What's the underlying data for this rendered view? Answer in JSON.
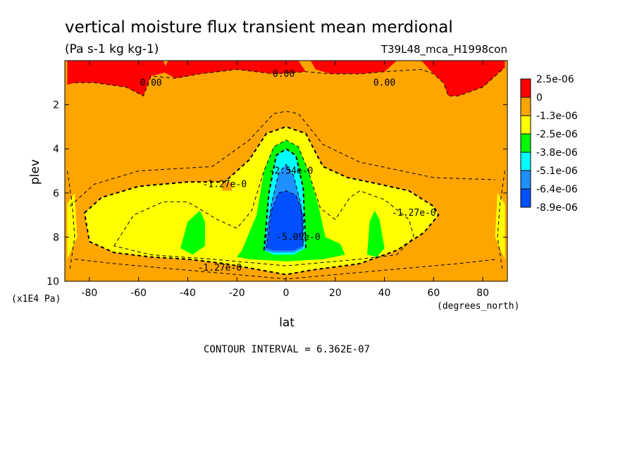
{
  "chart_data": {
    "type": "heatmap",
    "title": "vertical moisture flux transient mean merdional",
    "subtitle": "(Pa s-1 kg kg-1)",
    "run_label": "T39L48_mca_H1998con",
    "xlabel": "lat",
    "x_unit": "(degrees_north)",
    "ylabel": "plev",
    "y_unit": "(x1E4 Pa)",
    "xlim": [
      -90,
      90
    ],
    "ylim": [
      10,
      0
    ],
    "x_ticks": [
      "-80",
      "-60",
      "-40",
      "-20",
      "0",
      "20",
      "40",
      "60",
      "80"
    ],
    "x_tick_values": [
      -80,
      -60,
      -40,
      -20,
      0,
      20,
      40,
      60,
      80
    ],
    "y_ticks": [
      "2",
      "4",
      "6",
      "8",
      "10"
    ],
    "y_tick_values": [
      2,
      4,
      6,
      8,
      10
    ],
    "legend_placement": "right",
    "colorbar": [
      {
        "label": "2.5e-06",
        "color": "#ff0000"
      },
      {
        "label": "0",
        "color": "#ffa500"
      },
      {
        "label": "-1.3e-06",
        "color": "#ffff00"
      },
      {
        "label": "-2.5e-06",
        "color": "#00ff00"
      },
      {
        "label": "-3.8e-06",
        "color": "#00ffff"
      },
      {
        "label": "-5.1e-06",
        "color": "#1e90ff"
      },
      {
        "label": "-6.4e-06",
        "color": "#0050ff"
      },
      {
        "label": "-8.9e-06",
        "color": ""
      }
    ],
    "contour_labels": [
      {
        "text": "0.00",
        "lat": -55,
        "plev": 1.0
      },
      {
        "text": "0.00",
        "lat": -1,
        "plev": 0.6
      },
      {
        "text": "0.00",
        "lat": 40,
        "plev": 1.0
      },
      {
        "text": "-1.27e-0",
        "lat": -25,
        "plev": 5.6
      },
      {
        "text": "-2.54e-0",
        "lat": 2,
        "plev": 5.0
      },
      {
        "text": "-5.09e-0",
        "lat": 5,
        "plev": 8.0
      },
      {
        "text": "-1.27e-0",
        "lat": -27,
        "plev": 9.4
      },
      {
        "text": "-1.27e-0",
        "lat": 52,
        "plev": 6.9
      }
    ],
    "footer": "CONTOUR INTERVAL = 6.362E-07"
  }
}
